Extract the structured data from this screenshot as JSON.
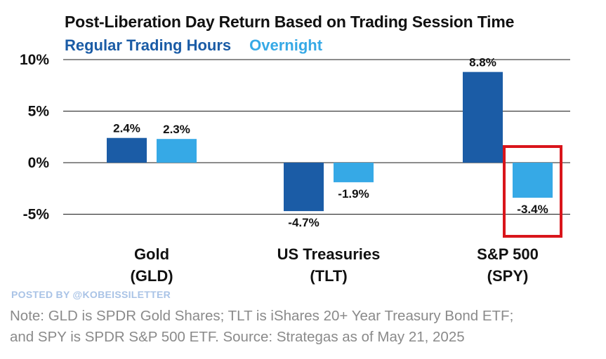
{
  "chart_data": {
    "type": "bar",
    "title": "Post-Liberation Day Return Based on Trading Session Time",
    "categories": [
      {
        "line1": "Gold",
        "line2": "(GLD)"
      },
      {
        "line1": "US Treasuries",
        "line2": "(TLT)"
      },
      {
        "line1": "S&P 500",
        "line2": "(SPY)"
      }
    ],
    "series": [
      {
        "name": "Regular Trading Hours",
        "color": "#1b5ca6",
        "values": [
          2.4,
          -4.7,
          8.8
        ],
        "labels": [
          "2.4%",
          "-4.7%",
          "8.8%"
        ]
      },
      {
        "name": "Overnight",
        "color": "#36a9e6",
        "values": [
          2.3,
          -1.9,
          -3.4
        ],
        "labels": [
          "2.3%",
          "-1.9%",
          "-3.4%"
        ]
      }
    ],
    "yticks": [
      {
        "value": 10,
        "label": "10%"
      },
      {
        "value": 5,
        "label": "5%"
      },
      {
        "value": 0,
        "label": "0%"
      },
      {
        "value": -5,
        "label": "-5%"
      }
    ],
    "ylim": [
      -6.7,
      10
    ],
    "highlight": {
      "category_index": 2,
      "series_index": 1,
      "color": "#d9151b"
    },
    "gridline_color": "#1a1a1a"
  },
  "posted_by": "POSTED BY @KOBEISSILETTER",
  "note": {
    "line1": "Note: GLD is SPDR Gold Shares; TLT is iShares 20+ Year Treasury Bond ETF;",
    "line2": "and SPY is SPDR S&P 500 ETF. Source: Strategas as of May 21, 2025"
  }
}
